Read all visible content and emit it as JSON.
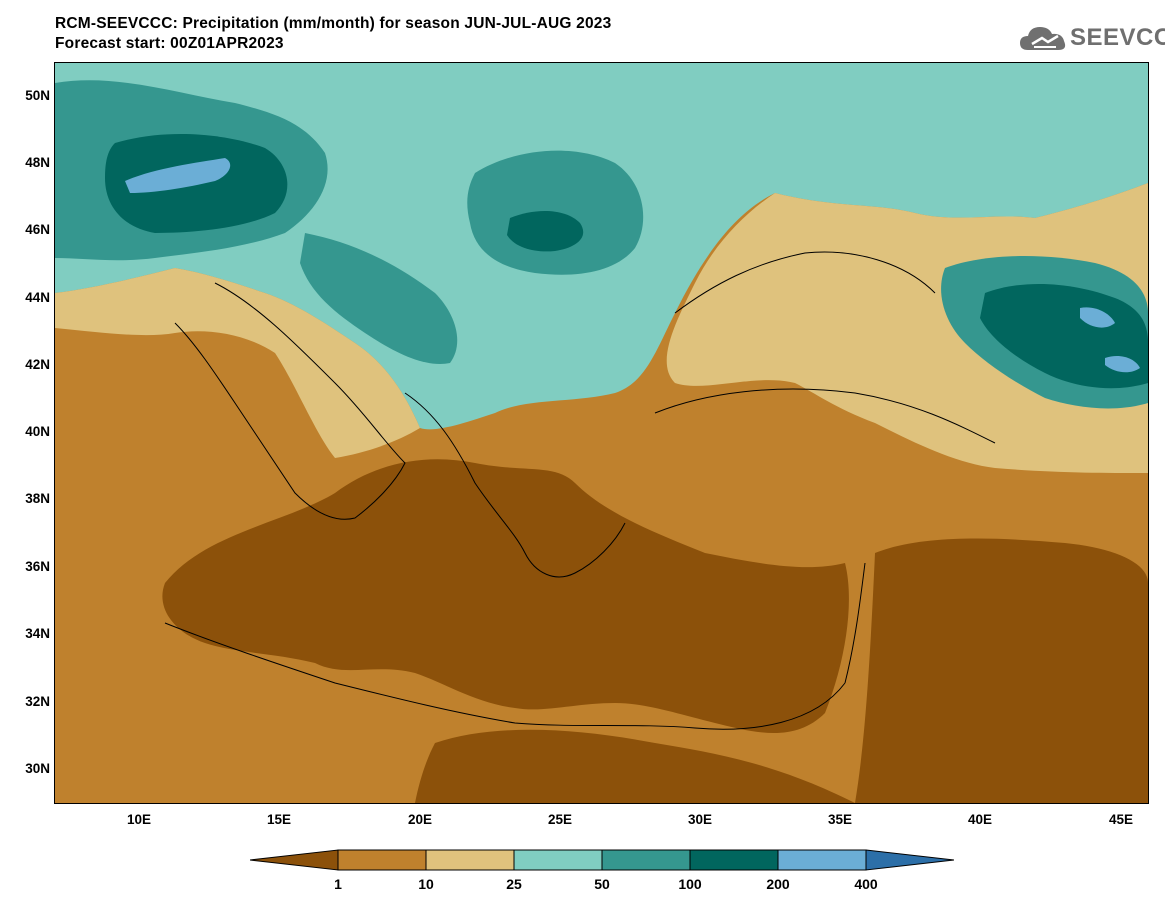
{
  "title": {
    "line1": "RCM-SEEVCCC: Precipitation (mm/month) for season JUN-JUL-AUG 2023",
    "line2": "Forecast start: 00Z01APR2023"
  },
  "logo": {
    "text": "SEEVCCC",
    "icon": "cloud-icon"
  },
  "map": {
    "variable": "Precipitation",
    "units": "mm/month",
    "season": "JUN-JUL-AUG 2023",
    "lon_range": [
      7,
      46
    ],
    "lat_range": [
      29,
      51
    ],
    "lat_ticks": [
      "50N",
      "48N",
      "46N",
      "44N",
      "42N",
      "40N",
      "38N",
      "36N",
      "34N",
      "32N",
      "30N"
    ],
    "lon_ticks": [
      "10E",
      "15E",
      "20E",
      "25E",
      "30E",
      "35E",
      "40E",
      "45E"
    ]
  },
  "legend": {
    "bins": [
      {
        "color": "#8c510a"
      },
      {
        "color": "#bf812d"
      },
      {
        "color": "#dfc27d"
      },
      {
        "color": "#80cdc1"
      },
      {
        "color": "#35978f"
      },
      {
        "color": "#01665e"
      },
      {
        "color": "#6baed6"
      },
      {
        "color": "#2c6fa8"
      }
    ],
    "labels": [
      "1",
      "10",
      "25",
      "50",
      "100",
      "200",
      "400"
    ]
  }
}
